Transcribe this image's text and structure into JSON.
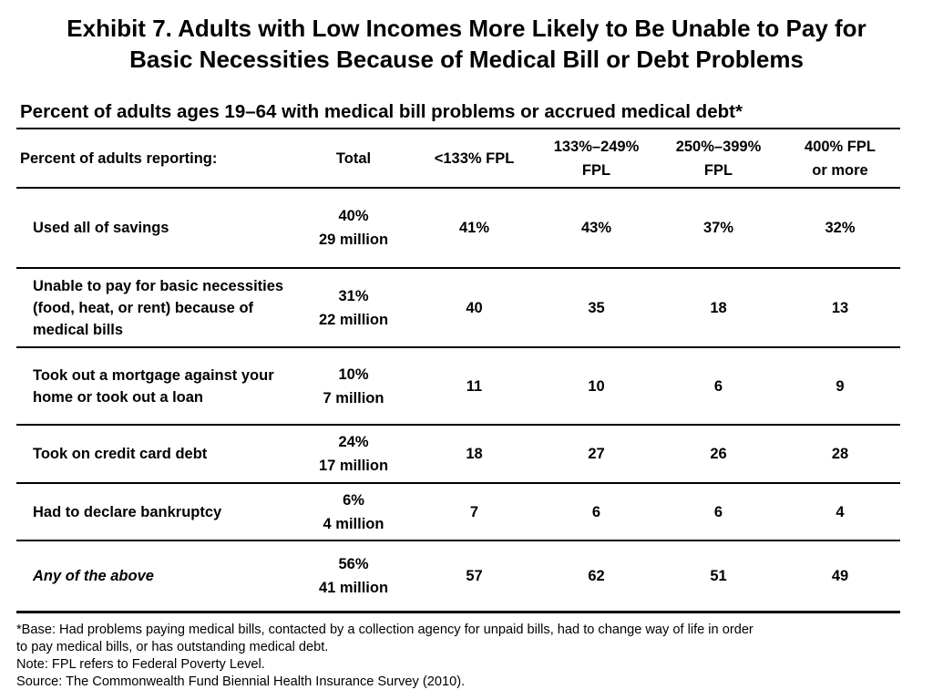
{
  "title": {
    "line1": "Exhibit 7. Adults with Low Incomes More Likely to Be Unable to Pay for",
    "line2": "Basic Necessities Because of Medical Bill or Debt Problems"
  },
  "subtitle": "Percent of adults ages 19–64 with medical bill problems or accrued medical debt*",
  "table": {
    "headers": {
      "label": "Percent of adults reporting:",
      "total": "Total",
      "fpl_133": "<133% FPL",
      "fpl_133_249_l1": "133%–249%",
      "fpl_133_249_l2": "FPL",
      "fpl_250_399_l1": "250%–399%",
      "fpl_250_399_l2": "FPL",
      "fpl_400_l1": "400% FPL",
      "fpl_400_l2": "or more"
    },
    "rows": [
      {
        "label": "Used all of savings",
        "total_pct": "40%",
        "total_count": "29 million",
        "fpl_133": "41%",
        "fpl_133_249": "43%",
        "fpl_250_399": "37%",
        "fpl_400": "32%"
      },
      {
        "label": "Unable to pay for basic necessities (food, heat, or rent) because of medical bills",
        "total_pct": "31%",
        "total_count": "22 million",
        "fpl_133": "40",
        "fpl_133_249": "35",
        "fpl_250_399": "18",
        "fpl_400": "13"
      },
      {
        "label": "Took out a mortgage against your home or took out a loan",
        "total_pct": "10%",
        "total_count": "7 million",
        "fpl_133": "11",
        "fpl_133_249": "10",
        "fpl_250_399": "6",
        "fpl_400": "9"
      },
      {
        "label": "Took on credit card debt",
        "total_pct": "24%",
        "total_count": "17 million",
        "fpl_133": "18",
        "fpl_133_249": "27",
        "fpl_250_399": "26",
        "fpl_400": "28"
      },
      {
        "label": "Had to declare bankruptcy",
        "total_pct": "6%",
        "total_count": "4 million",
        "fpl_133": "7",
        "fpl_133_249": "6",
        "fpl_250_399": "6",
        "fpl_400": "4"
      },
      {
        "label": "Any of the above",
        "total_pct": "56%",
        "total_count": "41 million",
        "fpl_133": "57",
        "fpl_133_249": "62",
        "fpl_250_399": "51",
        "fpl_400": "49"
      }
    ]
  },
  "notes": {
    "base_line1": "*Base: Had problems paying medical bills, contacted by a collection agency for unpaid bills, had to change way of life in order",
    "base_line2": "to pay medical bills, or has outstanding medical debt.",
    "fpl_note": "Note: FPL refers to Federal Poverty Level.",
    "source": "Source: The Commonwealth Fund Biennial Health Insurance Survey (2010)."
  }
}
